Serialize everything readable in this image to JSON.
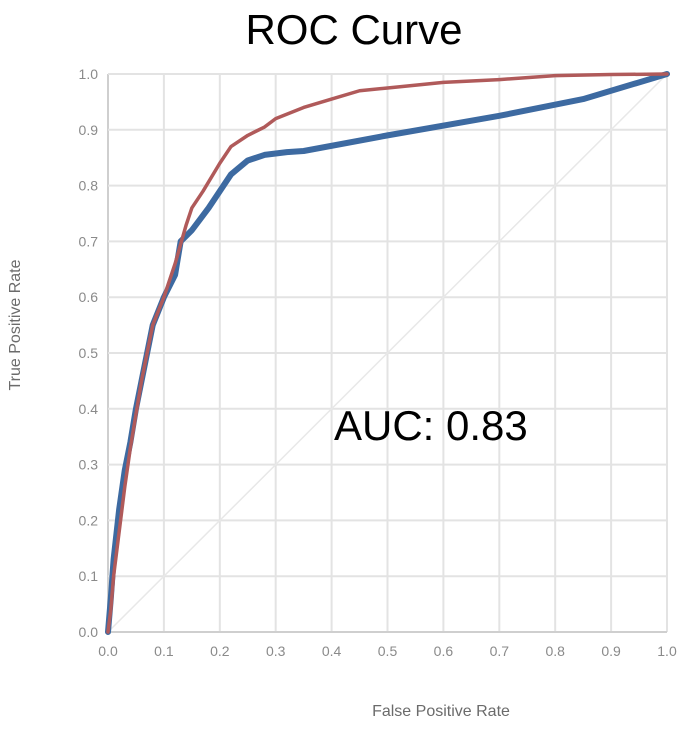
{
  "chart_data": {
    "type": "line",
    "title": "ROC Curve",
    "xlabel": "False Positive Rate",
    "ylabel": "True Positive Rate",
    "xlim": [
      0.0,
      1.0
    ],
    "ylim": [
      0.0,
      1.0
    ],
    "x_ticks": [
      "0.0",
      "0.1",
      "0.2",
      "0.3",
      "0.4",
      "0.5",
      "0.6",
      "0.7",
      "0.8",
      "0.9",
      "1.0"
    ],
    "y_ticks": [
      "0.0",
      "0.1",
      "0.2",
      "0.3",
      "0.4",
      "0.5",
      "0.6",
      "0.7",
      "0.8",
      "0.9",
      "1.0"
    ],
    "grid": true,
    "annotation": "AUC: 0.83",
    "series": [
      {
        "color": "#3d6aa1",
        "x": [
          0.0,
          0.005,
          0.01,
          0.02,
          0.03,
          0.04,
          0.05,
          0.06,
          0.08,
          0.1,
          0.12,
          0.13,
          0.15,
          0.18,
          0.2,
          0.22,
          0.25,
          0.28,
          0.32,
          0.35,
          0.5,
          0.7,
          0.85,
          1.0
        ],
        "y": [
          0.0,
          0.06,
          0.13,
          0.22,
          0.29,
          0.34,
          0.4,
          0.45,
          0.55,
          0.6,
          0.64,
          0.7,
          0.72,
          0.76,
          0.79,
          0.82,
          0.845,
          0.855,
          0.86,
          0.862,
          0.89,
          0.925,
          0.955,
          1.0
        ]
      },
      {
        "color": "#b05a5a",
        "x": [
          0.0,
          0.005,
          0.01,
          0.02,
          0.03,
          0.04,
          0.05,
          0.06,
          0.08,
          0.1,
          0.12,
          0.14,
          0.15,
          0.17,
          0.2,
          0.22,
          0.25,
          0.28,
          0.3,
          0.35,
          0.4,
          0.45,
          0.5,
          0.6,
          0.7,
          0.8,
          0.9,
          1.0
        ],
        "y": [
          0.0,
          0.04,
          0.1,
          0.18,
          0.26,
          0.33,
          0.39,
          0.45,
          0.55,
          0.6,
          0.66,
          0.73,
          0.76,
          0.79,
          0.84,
          0.87,
          0.89,
          0.905,
          0.92,
          0.94,
          0.955,
          0.97,
          0.975,
          0.985,
          0.99,
          0.997,
          0.999,
          1.0
        ]
      },
      {
        "color": "#e8e8e8",
        "x": [
          0.0,
          1.0
        ],
        "y": [
          0.0,
          1.0
        ]
      }
    ]
  }
}
